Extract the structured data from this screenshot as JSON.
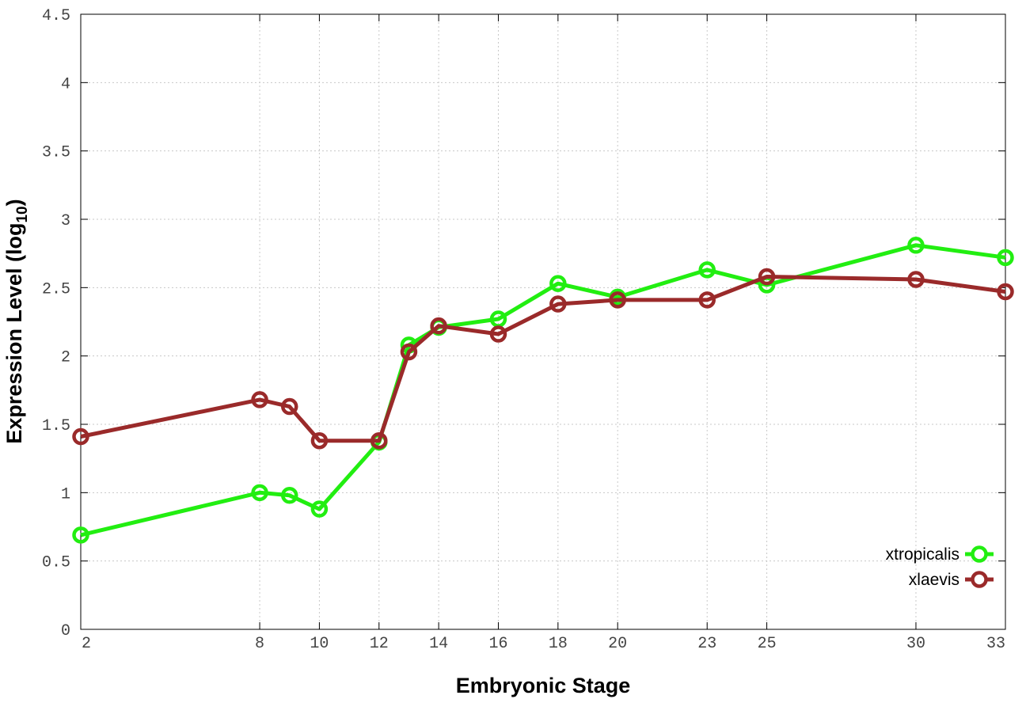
{
  "chart_data": {
    "type": "line",
    "title": "",
    "xlabel": "Embryonic Stage",
    "ylabel": "Expression Level (log",
    "ylabel_subscript": "10",
    "ylabel_close": ")",
    "xlim": [
      2,
      33
    ],
    "ylim": [
      0,
      4.5
    ],
    "x_ticks": [
      2,
      8,
      10,
      12,
      14,
      16,
      18,
      20,
      23,
      25,
      30,
      33
    ],
    "y_ticks": [
      0,
      0.5,
      1,
      1.5,
      2,
      2.5,
      3,
      3.5,
      4,
      4.5
    ],
    "y_tick_labels": [
      "0",
      "0.5",
      "1",
      "1.5",
      "2",
      "2.5",
      "3",
      "3.5",
      "4",
      "4.5"
    ],
    "grid": true,
    "legend_position": "bottom-right",
    "series": [
      {
        "name": "xtropicalis",
        "color": "#22ee11",
        "x": [
          2,
          8,
          9,
          10,
          12,
          13,
          14,
          16,
          18,
          20,
          23,
          25,
          30,
          33
        ],
        "y": [
          0.69,
          1.0,
          0.98,
          0.88,
          1.37,
          2.08,
          2.21,
          2.27,
          2.53,
          2.43,
          2.63,
          2.52,
          2.81,
          2.72
        ]
      },
      {
        "name": "xlaevis",
        "color": "#9a2a2a",
        "x": [
          2,
          8,
          9,
          10,
          12,
          13,
          14,
          16,
          18,
          20,
          23,
          25,
          30,
          33
        ],
        "y": [
          1.41,
          1.68,
          1.63,
          1.38,
          1.38,
          2.03,
          2.22,
          2.16,
          2.38,
          2.41,
          2.41,
          2.58,
          2.56,
          2.47
        ]
      }
    ]
  }
}
